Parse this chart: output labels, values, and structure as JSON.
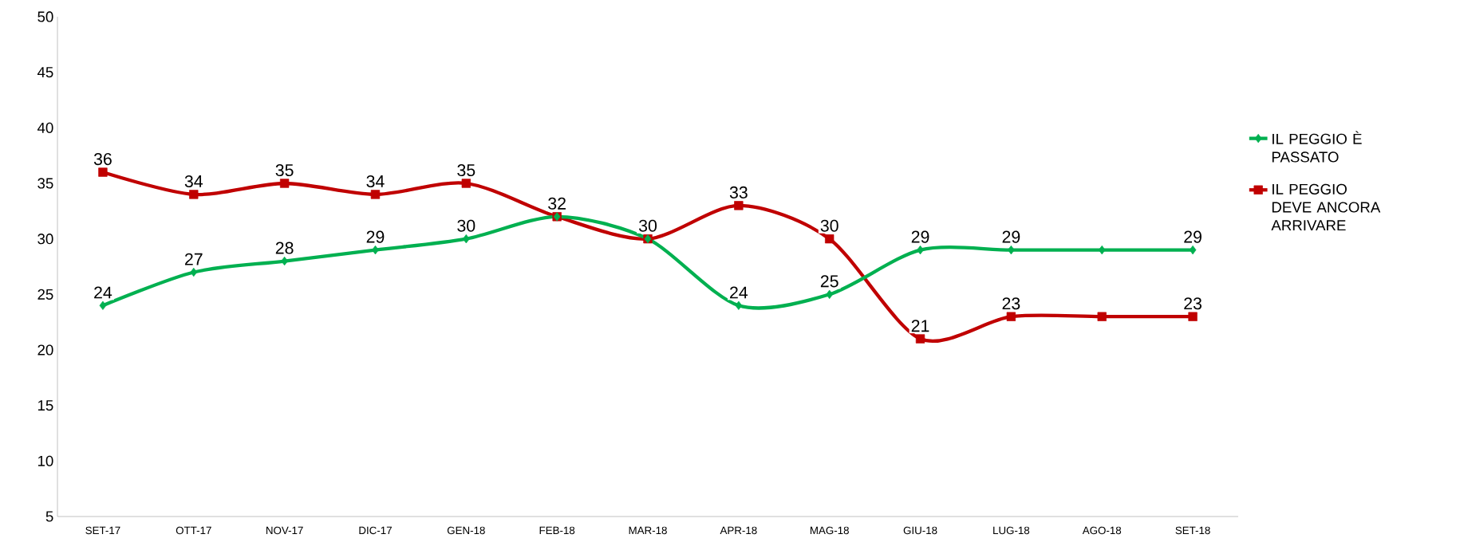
{
  "chart_data": {
    "type": "line",
    "categories": [
      "SET-17",
      "OTT-17",
      "NOV-17",
      "DIC-17",
      "GEN-18",
      "FEB-18",
      "MAR-18",
      "APR-18",
      "MAG-18",
      "GIU-18",
      "LUG-18",
      "AGO-18",
      "SET-18"
    ],
    "series": [
      {
        "name": "IL PEGGIO È PASSATO",
        "color": "#00b050",
        "marker": "diamond",
        "values": [
          24,
          27,
          28,
          29,
          30,
          32,
          30,
          24,
          25,
          29,
          29,
          29,
          29
        ],
        "value_labels": [
          "24",
          "27",
          "28",
          "29",
          "30",
          null,
          null,
          "24",
          "25",
          "29",
          "29",
          null,
          "29"
        ]
      },
      {
        "name": "IL PEGGIO DEVE ANCORA ARRIVARE",
        "color": "#c00000",
        "marker": "square",
        "values": [
          36,
          34,
          35,
          34,
          35,
          32,
          30,
          33,
          30,
          21,
          23,
          23,
          23
        ],
        "value_labels": [
          "36",
          "34",
          "35",
          "34",
          "35",
          "32",
          "30",
          "33",
          "30",
          "21",
          "23",
          null,
          "23"
        ]
      }
    ],
    "ylim": [
      5,
      50
    ],
    "yticks": [
      5,
      10,
      15,
      20,
      25,
      30,
      35,
      40,
      45,
      50
    ],
    "grid": false,
    "legend": "right",
    "line_style": "solid"
  }
}
